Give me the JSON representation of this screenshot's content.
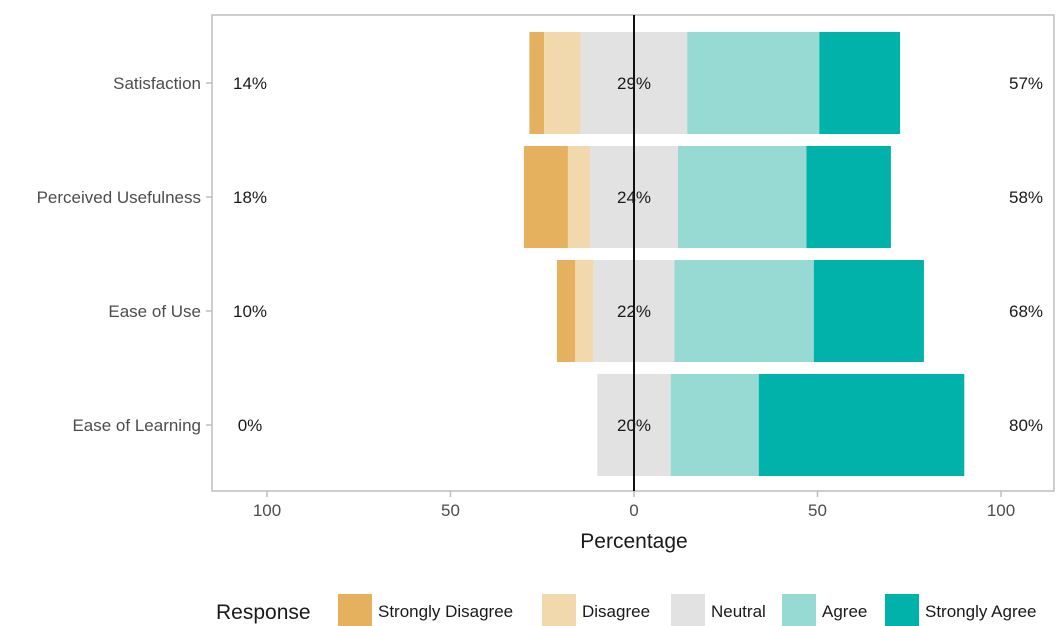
{
  "chart_data": {
    "type": "bar",
    "orientation": "horizontal",
    "stacked": "diverging",
    "xlabel": "Percentage",
    "ylabel": "",
    "xlim": [
      -100,
      100
    ],
    "xticks": [
      -100,
      -50,
      0,
      50,
      100
    ],
    "xtick_labels": [
      "100",
      "50",
      "0",
      "50",
      "100"
    ],
    "grid": false,
    "legend": {
      "title": "Response",
      "placement": "bottom",
      "entries": [
        "Strongly Disagree",
        "Disagree",
        "Neutral",
        "Agree",
        "Strongly Agree"
      ]
    },
    "colors": {
      "Strongly Disagree": "#e5b15e",
      "Disagree": "#f2d8ad",
      "Neutral": "#e2e2e2",
      "Agree": "#97d9d3",
      "Strongly Agree": "#00b2a9"
    },
    "categories": [
      "Satisfaction",
      "Perceived Usefulness",
      "Ease of Use",
      "Ease of Learning"
    ],
    "series": [
      {
        "name": "Strongly Disagree",
        "values": [
          4,
          12,
          5,
          0
        ]
      },
      {
        "name": "Disagree",
        "values": [
          10,
          6,
          5,
          0
        ]
      },
      {
        "name": "Neutral",
        "values": [
          29,
          24,
          22,
          20
        ]
      },
      {
        "name": "Agree",
        "values": [
          36,
          35,
          38,
          24
        ]
      },
      {
        "name": "Strongly Agree",
        "values": [
          22,
          23,
          30,
          56
        ]
      }
    ],
    "left_labels": [
      "14%",
      "18%",
      "10%",
      "0%"
    ],
    "center_labels": [
      "29%",
      "24%",
      "22%",
      "20%"
    ],
    "right_labels": [
      "57%",
      "58%",
      "68%",
      "80%"
    ]
  }
}
